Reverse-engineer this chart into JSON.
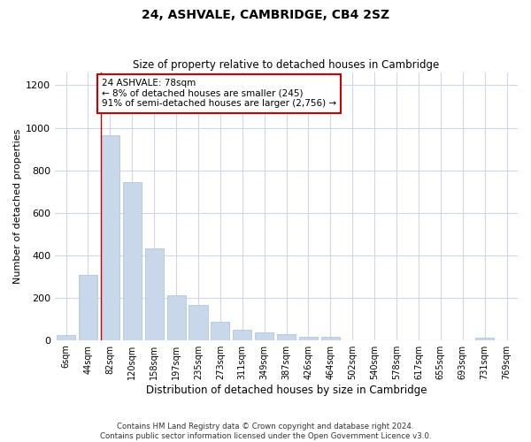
{
  "title": "24, ASHVALE, CAMBRIDGE, CB4 2SZ",
  "subtitle": "Size of property relative to detached houses in Cambridge",
  "xlabel": "Distribution of detached houses by size in Cambridge",
  "ylabel": "Number of detached properties",
  "bar_color": "#c8d8ea",
  "bar_edgecolor": "#a8c0d8",
  "annotation_line_color": "#cc0000",
  "annotation_box_color": "#cc0000",
  "annotation_text": "24 ASHVALE: 78sqm\n← 8% of detached houses are smaller (245)\n91% of semi-detached houses are larger (2,756) →",
  "property_bin_index": 2,
  "categories": [
    "6sqm",
    "44sqm",
    "82sqm",
    "120sqm",
    "158sqm",
    "197sqm",
    "235sqm",
    "273sqm",
    "311sqm",
    "349sqm",
    "387sqm",
    "426sqm",
    "464sqm",
    "502sqm",
    "540sqm",
    "578sqm",
    "617sqm",
    "655sqm",
    "693sqm",
    "731sqm",
    "769sqm"
  ],
  "values": [
    22,
    305,
    965,
    745,
    430,
    210,
    165,
    85,
    50,
    35,
    26,
    15,
    14,
    0,
    0,
    0,
    0,
    0,
    0,
    12,
    0
  ],
  "ylim": [
    0,
    1260
  ],
  "yticks": [
    0,
    200,
    400,
    600,
    800,
    1000,
    1200
  ],
  "footer_line1": "Contains HM Land Registry data © Crown copyright and database right 2024.",
  "footer_line2": "Contains public sector information licensed under the Open Government Licence v3.0.",
  "background_color": "#ffffff",
  "grid_color": "#d0d8e8"
}
